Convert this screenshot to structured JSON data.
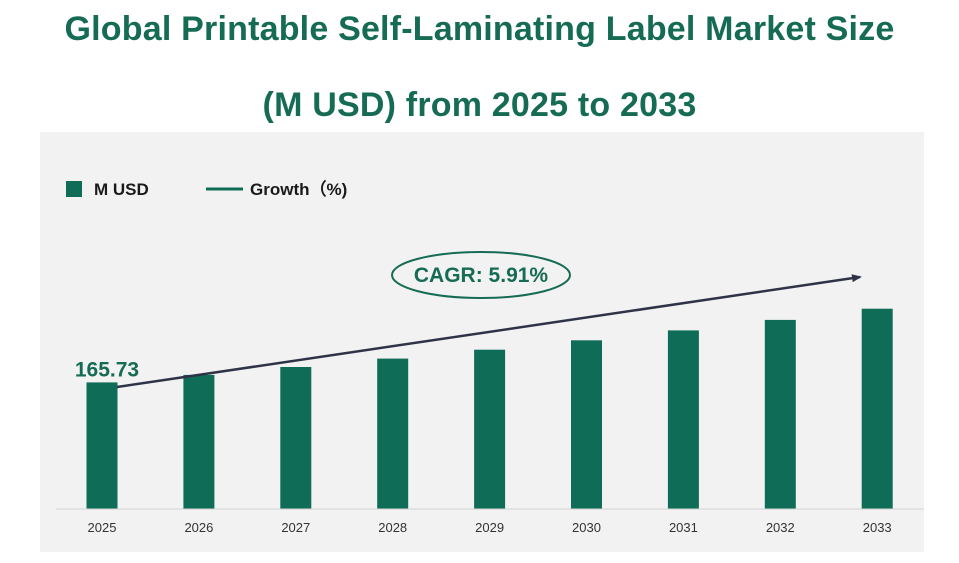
{
  "chart_data": {
    "type": "bar",
    "title_lines": [
      "Global Printable Self-Laminating Label Market Size",
      "(M USD) from 2025 to 2033"
    ],
    "categories": [
      "2025",
      "2026",
      "2027",
      "2028",
      "2029",
      "2030",
      "2031",
      "2032",
      "2033"
    ],
    "series": [
      {
        "name": "M USD",
        "values": [
          165.73,
          175.5,
          185.9,
          196.9,
          208.5,
          220.8,
          233.8,
          247.6,
          262.2
        ]
      }
    ],
    "data_labels": [
      {
        "category": "2025",
        "text": "165.73"
      }
    ],
    "legend": {
      "bar_label": "M USD",
      "line_label": "Growth（%)"
    },
    "annotation": {
      "cagr_text": "CAGR: 5.91%"
    },
    "ylim": [
      0,
      288
    ],
    "xlabel": "",
    "ylabel": "",
    "grid": false,
    "legend_position": "top-left",
    "colors": {
      "bar": "#0f6d57",
      "title": "#166b54",
      "arrow": "#2e3347",
      "panel": "#f2f2f2"
    }
  }
}
